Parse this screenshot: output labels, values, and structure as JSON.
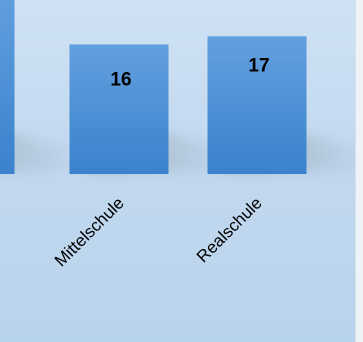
{
  "chart_data": {
    "type": "bar",
    "categories": [
      "",
      "Mittelschule",
      "Realschule"
    ],
    "values": [
      null,
      16,
      17
    ],
    "ylim": [
      0,
      40
    ],
    "title": "",
    "xlabel": "",
    "ylabel": "",
    "grid": false,
    "legend": "none",
    "bar_color": "#3f86cf",
    "bar_color_light": "#5c9de0",
    "background_color": "#c6dbf0"
  }
}
